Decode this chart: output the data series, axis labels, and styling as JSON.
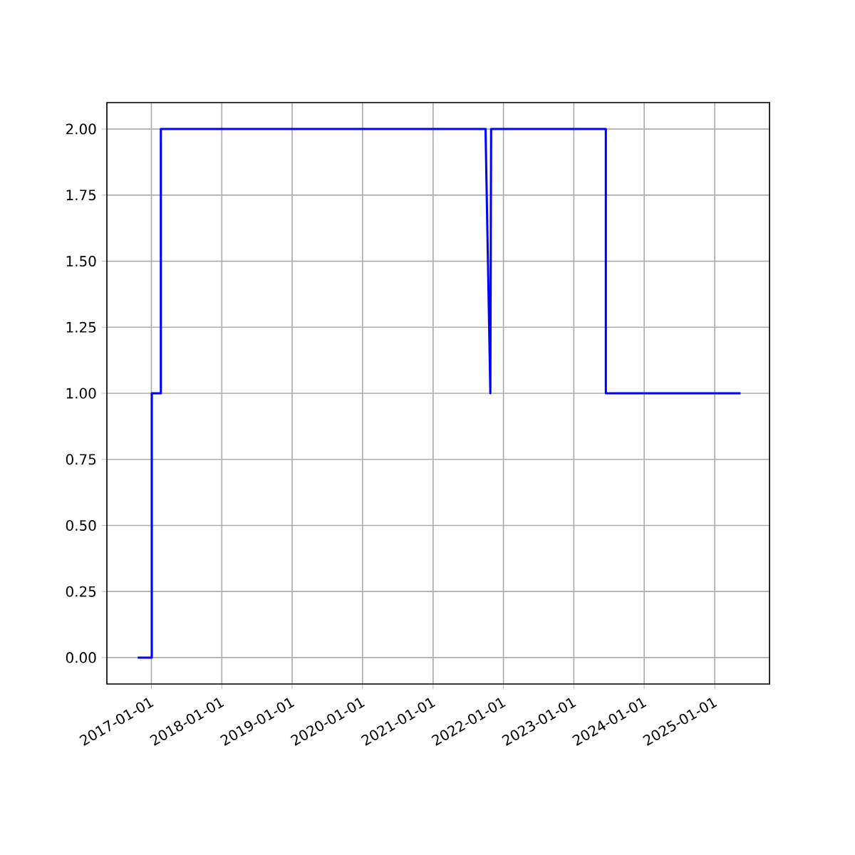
{
  "chart_data": {
    "type": "line",
    "color": "#0000ff",
    "x": [
      "2016-10-22",
      "2017-01-03",
      "2017-01-03",
      "2017-02-19",
      "2017-02-19",
      "2021-09-30",
      "2021-10-25",
      "2021-10-29",
      "2023-06-16",
      "2023-06-16",
      "2025-05-15"
    ],
    "values": [
      0,
      0,
      1,
      1,
      2,
      2,
      1,
      2,
      2,
      1,
      1
    ],
    "xlim": [
      "2016-05-15",
      "2025-10-12"
    ],
    "xticks": [
      "2017-01-01",
      "2018-01-01",
      "2019-01-01",
      "2020-01-01",
      "2021-01-01",
      "2022-01-01",
      "2023-01-01",
      "2024-01-01",
      "2025-01-01"
    ],
    "ylim": [
      -0.1,
      2.1
    ],
    "yticks": [
      {
        "value": 0,
        "label": "0.00"
      },
      {
        "value": 0.25,
        "label": "0.25"
      },
      {
        "value": 0.5,
        "label": "0.50"
      },
      {
        "value": 0.75,
        "label": "0.75"
      },
      {
        "value": 1,
        "label": "1.00"
      },
      {
        "value": 1.25,
        "label": "1.25"
      },
      {
        "value": 1.5,
        "label": "1.50"
      },
      {
        "value": 1.75,
        "label": "1.75"
      },
      {
        "value": 2,
        "label": "2.00"
      }
    ],
    "grid": true,
    "marker": "none",
    "line_style": "solid"
  }
}
